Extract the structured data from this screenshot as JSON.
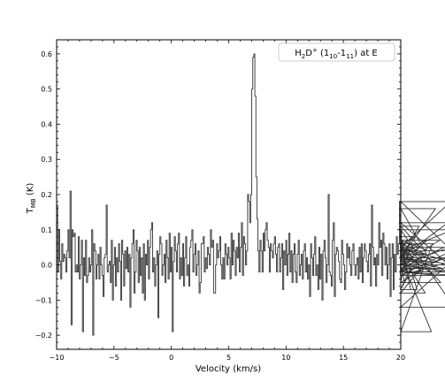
{
  "chart_data": {
    "type": "line",
    "title": "",
    "xlabel": "Velocity (km/s)",
    "ylabel": "T_MB (K)",
    "ylabel_main": "T",
    "ylabel_sub": "MB",
    "ylabel_rest": " (K)",
    "xlim": [
      -10,
      20
    ],
    "ylim": [
      -0.24,
      0.64
    ],
    "xticks": [
      -10,
      -5,
      0,
      5,
      10,
      15,
      20
    ],
    "xtick_labels": [
      "−10",
      "−5",
      "0",
      "5",
      "10",
      "15",
      "20"
    ],
    "yticks": [
      -0.2,
      -0.1,
      0.0,
      0.1,
      0.2,
      0.3,
      0.4,
      0.5,
      0.6
    ],
    "ytick_labels": [
      "−0.2",
      "−0.1",
      "0.0",
      "0.1",
      "0.2",
      "0.3",
      "0.4",
      "0.5",
      "0.6"
    ],
    "grid": false,
    "legend_position": "top-right",
    "legend": {
      "parts": [
        {
          "t": "H",
          "s": "normal"
        },
        {
          "t": "2",
          "s": "sub"
        },
        {
          "t": "D",
          "s": "normal"
        },
        {
          "t": "+",
          "s": "sup"
        },
        {
          "t": " (1",
          "s": "normal"
        },
        {
          "t": "10",
          "s": "sub"
        },
        {
          "t": "-1",
          "s": "normal"
        },
        {
          "t": "11",
          "s": "sub"
        },
        {
          "t": ") at E",
          "s": "normal"
        }
      ]
    },
    "series": [
      {
        "style": "step",
        "color": "#333333",
        "x_start": -10.0,
        "x_step": 0.09,
        "values": [
          0.17,
          -0.02,
          0.1,
          0.01,
          -0.04,
          0.06,
          0.01,
          0.03,
          0.02,
          -0.02,
          0.04,
          0.1,
          0.02,
          0.21,
          -0.17,
          0.1,
          0.08,
          0.09,
          -0.02,
          0.0,
          -0.02,
          0.08,
          -0.04,
          0.0,
          0.07,
          -0.19,
          0.02,
          -0.03,
          0.07,
          -0.05,
          -0.03,
          0.02,
          -0.02,
          0.0,
          0.1,
          -0.2,
          0.06,
          0.04,
          -0.04,
          0.0,
          0.03,
          -0.04,
          0.05,
          0.0,
          -0.03,
          -0.09,
          0.02,
          0.03,
          0.17,
          -0.02,
          0.0,
          0.01,
          -0.05,
          0.07,
          -0.1,
          0.0,
          0.05,
          -0.06,
          0.02,
          -0.02,
          0.06,
          0.01,
          -0.1,
          0.07,
          0.03,
          -0.06,
          0.04,
          -0.01,
          0.05,
          -0.02,
          0.03,
          -0.12,
          0.02,
          0.06,
          0.1,
          -0.08,
          -0.02,
          0.07,
          0.04,
          -0.05,
          0.05,
          -0.03,
          0.02,
          -0.08,
          0.06,
          -0.1,
          0.03,
          0.0,
          0.07,
          -0.04,
          0.05,
          0.1,
          0.12,
          -0.02,
          0.02,
          -0.06,
          0.0,
          0.04,
          -0.15,
          0.03,
          0.08,
          0.06,
          -0.03,
          0.0,
          0.03,
          -0.05,
          0.07,
          0.02,
          -0.04,
          0.09,
          -0.02,
          0.05,
          -0.19,
          0.01,
          0.08,
          0.04,
          -0.02,
          0.06,
          0.09,
          -0.04,
          0.02,
          -0.03,
          0.06,
          -0.06,
          0.02,
          0.08,
          -0.03,
          0.0,
          -0.06,
          0.05,
          0.07,
          0.1,
          -0.02,
          0.03,
          0.06,
          -0.03,
          0.0,
          0.04,
          -0.08,
          -0.05,
          0.06,
          0.06,
          0.08,
          -0.02,
          0.02,
          -0.01,
          0.05,
          0.03,
          0.0,
          0.1,
          0.05,
          0.07,
          -0.08,
          -0.08,
          0.0,
          0.06,
          0.02,
          0.04,
          0.08,
          0.0,
          -0.04,
          0.02,
          -0.04,
          0.06,
          0.03,
          0.0,
          0.05,
          0.02,
          -0.04,
          0.09,
          0.0,
          0.07,
          0.04,
          -0.03,
          0.05,
          0.02,
          0.09,
          -0.02,
          0.05,
          0.12,
          -0.03,
          0.08,
          0.06,
          0.0,
          0.04,
          0.2,
          0.18,
          0.12,
          0.2,
          0.5,
          0.59,
          0.6,
          0.48,
          0.25,
          0.13,
          0.04,
          -0.02,
          0.07,
          0.04,
          -0.02,
          0.09,
          0.04,
          0.1,
          0.12,
          0.07,
          0.05,
          -0.02,
          0.06,
          0.04,
          0.02,
          0.06,
          0.08,
          0.03,
          -0.02,
          0.05,
          0.06,
          -0.02,
          0.02,
          0.06,
          -0.07,
          0.04,
          0.0,
          0.07,
          -0.03,
          0.03,
          0.09,
          -0.02,
          0.04,
          -0.05,
          0.03,
          0.06,
          -0.02,
          -0.05,
          0.03,
          0.07,
          -0.03,
          0.0,
          0.03,
          -0.04,
          0.04,
          0.06,
          -0.02,
          0.02,
          -0.04,
          0.0,
          -0.09,
          0.06,
          0.02,
          -0.03,
          0.03,
          0.08,
          -0.03,
          0.0,
          -0.07,
          0.05,
          -0.04,
          0.03,
          -0.1,
          0.04,
          0.07,
          0.02,
          -0.05,
          0.0,
          0.2,
          -0.02,
          -0.03,
          -0.06,
          0.07,
          0.12,
          -0.09,
          0.03,
          0.05,
          0.04,
          0.01,
          -0.04,
          -0.05,
          0.07,
          0.03,
          0.0,
          -0.07,
          -0.02,
          0.06,
          0.02,
          0.05,
          0.0,
          -0.03,
          0.04,
          0.06,
          0.0,
          -0.03,
          0.0,
          0.02,
          -0.04,
          0.05,
          -0.02,
          0.06,
          -0.05,
          0.02,
          0.06,
          0.04,
          0.01,
          -0.02,
          0.03,
          0.06,
          -0.06,
          0.17,
          0.05,
          0.0,
          0.02,
          -0.06,
          0.03,
          0.0,
          0.12,
          0.05,
          0.07,
          -0.03,
          0.09,
          0.06,
          0.0,
          0.05,
          -0.04,
          0.0,
          0.06,
          -0.09,
          0.02,
          0.06,
          -0.07,
          0.03,
          -0.02,
          0.08,
          0.03,
          0.06,
          0.18,
          -0.03,
          0.1,
          0.04,
          0.0,
          -0.05,
          0.04,
          0.07,
          -0.02,
          0.03,
          0.06,
          -0.07,
          0.0,
          0.05,
          0.02,
          0.06,
          0.08,
          -0.07,
          0.02,
          0.11,
          0.05,
          -0.02,
          0.06,
          -0.02,
          0.03,
          -0.08,
          0.01,
          0.07,
          0.04,
          -0.02,
          0.02,
          -0.19,
          0.06,
          0.06,
          0.02,
          0.16,
          -0.02,
          -0.03,
          0.0,
          0.07,
          -0.05,
          0.02,
          -0.01,
          0.05,
          0.0,
          -0.02,
          0.02,
          0.12,
          0.0,
          0.05,
          0.18,
          0.04,
          0.1,
          -0.12,
          0.02,
          0.0,
          -0.02,
          -0.03,
          0.05,
          0.0
        ]
      }
    ]
  }
}
